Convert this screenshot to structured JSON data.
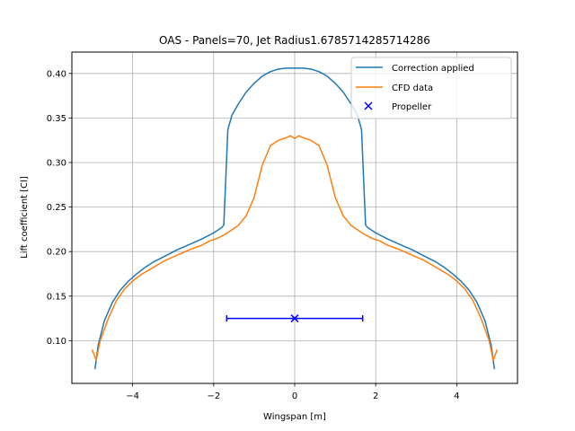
{
  "chart_data": {
    "type": "line",
    "title": "OAS - Panels=70, Jet Radius1.6785714285714286",
    "xlabel": "Wingspan [m]",
    "ylabel": "Lift coefficient [Cl]",
    "xlim": [
      -5.5,
      5.5
    ],
    "ylim": [
      0.052,
      0.424
    ],
    "xticks": [
      -4,
      -2,
      0,
      2,
      4
    ],
    "xtick_labels": [
      "−4",
      "−2",
      "0",
      "2",
      "4"
    ],
    "yticks": [
      0.1,
      0.15,
      0.2,
      0.25,
      0.3,
      0.35,
      0.4
    ],
    "ytick_labels": [
      "0.10",
      "0.15",
      "0.20",
      "0.25",
      "0.30",
      "0.35",
      "0.40"
    ],
    "grid": true,
    "legend_position": "top-right",
    "series": [
      {
        "name": "Correction applied",
        "color": "#1f77b4",
        "kind": "line",
        "x": [
          -4.93,
          -4.85,
          -4.7,
          -4.5,
          -4.3,
          -4.1,
          -3.9,
          -3.7,
          -3.5,
          -3.2,
          -2.9,
          -2.6,
          -2.3,
          -2.0,
          -1.8,
          -1.75,
          -1.7,
          -1.65,
          -1.55,
          -1.4,
          -1.2,
          -1.0,
          -0.8,
          -0.6,
          -0.4,
          -0.2,
          0.0,
          0.2,
          0.4,
          0.6,
          0.8,
          1.0,
          1.2,
          1.4,
          1.55,
          1.65,
          1.7,
          1.75,
          1.8,
          2.0,
          2.3,
          2.6,
          2.9,
          3.2,
          3.5,
          3.7,
          3.9,
          4.1,
          4.3,
          4.5,
          4.7,
          4.85,
          4.93
        ],
        "y": [
          0.068,
          0.095,
          0.122,
          0.143,
          0.157,
          0.167,
          0.175,
          0.182,
          0.188,
          0.195,
          0.202,
          0.208,
          0.214,
          0.221,
          0.227,
          0.23,
          0.283,
          0.337,
          0.353,
          0.365,
          0.379,
          0.389,
          0.397,
          0.402,
          0.405,
          0.406,
          0.406,
          0.406,
          0.405,
          0.402,
          0.397,
          0.389,
          0.379,
          0.365,
          0.353,
          0.337,
          0.283,
          0.23,
          0.227,
          0.221,
          0.214,
          0.208,
          0.202,
          0.195,
          0.188,
          0.182,
          0.175,
          0.167,
          0.157,
          0.143,
          0.122,
          0.095,
          0.068
        ]
      },
      {
        "name": "CFD data",
        "color": "#ff7f0e",
        "kind": "line",
        "x": [
          -5.0,
          -4.9,
          -4.8,
          -4.6,
          -4.4,
          -4.2,
          -4.0,
          -3.8,
          -3.5,
          -3.2,
          -2.9,
          -2.6,
          -2.3,
          -2.1,
          -1.9,
          -1.7,
          -1.6,
          -1.4,
          -1.2,
          -1.0,
          -0.8,
          -0.6,
          -0.4,
          -0.2,
          -0.1,
          0.0,
          0.1,
          0.2,
          0.4,
          0.6,
          0.8,
          1.0,
          1.2,
          1.4,
          1.6,
          1.7,
          1.9,
          2.1,
          2.3,
          2.6,
          2.9,
          3.2,
          3.5,
          3.8,
          4.0,
          4.2,
          4.4,
          4.6,
          4.8,
          4.9,
          5.0
        ],
        "y": [
          0.09,
          0.078,
          0.1,
          0.125,
          0.145,
          0.158,
          0.167,
          0.174,
          0.182,
          0.19,
          0.196,
          0.202,
          0.207,
          0.212,
          0.215,
          0.22,
          0.223,
          0.229,
          0.24,
          0.261,
          0.297,
          0.319,
          0.325,
          0.328,
          0.33,
          0.327,
          0.33,
          0.328,
          0.325,
          0.319,
          0.297,
          0.261,
          0.24,
          0.229,
          0.223,
          0.22,
          0.215,
          0.212,
          0.207,
          0.202,
          0.196,
          0.19,
          0.182,
          0.174,
          0.167,
          0.158,
          0.145,
          0.125,
          0.1,
          0.078,
          0.09
        ]
      },
      {
        "name": "Propeller",
        "color": "#0000ff",
        "kind": "errorbar-marker",
        "x": [
          0.0
        ],
        "y": [
          0.125
        ],
        "xerr": 1.6785714285714286
      }
    ]
  }
}
